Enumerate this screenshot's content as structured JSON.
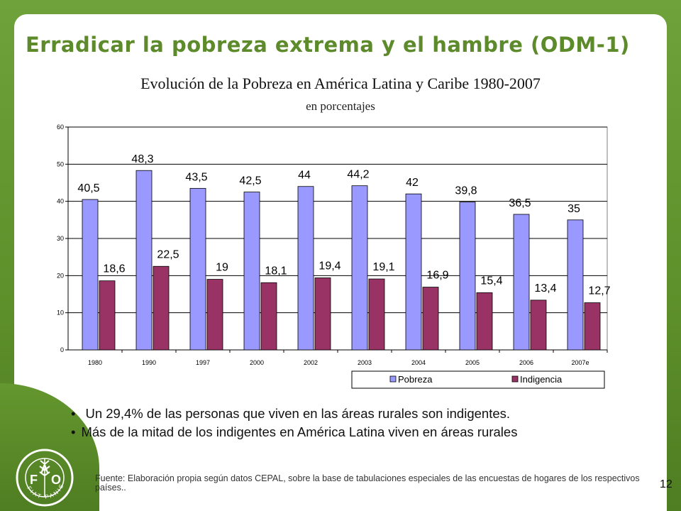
{
  "slide": {
    "title": "Erradicar la pobreza extrema y el hambre (ODM-1)",
    "page_number": "12"
  },
  "chart_data": {
    "type": "bar",
    "title": "Evolución de la Pobreza en América Latina y Caribe 1980-2007",
    "subtitle": "en porcentajes",
    "categories": [
      "1980",
      "1990",
      "1997",
      "2000",
      "2002",
      "2003",
      "2004",
      "2005",
      "2006",
      "2007e"
    ],
    "series": [
      {
        "name": "Pobreza",
        "color": "#9999ff",
        "values": [
          40.5,
          48.3,
          43.5,
          42.5,
          44,
          44.2,
          42,
          39.8,
          36.5,
          35
        ],
        "labels": [
          "40,5",
          "48,3",
          "43,5",
          "42,5",
          "44",
          "44,2",
          "42",
          "39,8",
          "36,5",
          "35"
        ]
      },
      {
        "name": "Indigencia",
        "color": "#993366",
        "values": [
          18.6,
          22.5,
          19,
          18.1,
          19.4,
          19.1,
          16.9,
          15.4,
          13.4,
          12.7
        ],
        "labels": [
          "18,6",
          "22,5",
          "19",
          "18,1",
          "19,4",
          "19,1",
          "16,9",
          "15,4",
          "13,4",
          "12,7"
        ]
      }
    ],
    "y_ticks": [
      "0",
      "10",
      "20",
      "30",
      "40",
      "50",
      "60"
    ],
    "ylim": [
      0,
      60
    ],
    "grid": true,
    "legend_position": "bottom-right"
  },
  "bullets": [
    "Un 29,4% de las personas que viven en las áreas rurales son indigentes.",
    "Más de la mitad de los indigentes en América Latina viven en áreas rurales"
  ],
  "bullet_symbol": "•",
  "source_note": "Fuente: Elaboración propia según datos CEPAL, sobre la base de tabulaciones especiales de las encuestas de hogares de los respectivos países..",
  "logo": {
    "name": "FAO",
    "letters": [
      "F",
      "A",
      "O"
    ],
    "motto": "FIAT PANIS",
    "icon": "fao-wheat-logo-icon"
  }
}
